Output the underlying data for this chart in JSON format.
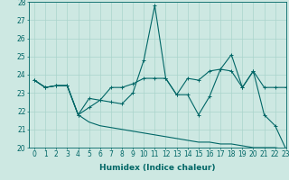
{
  "title": "",
  "xlabel": "Humidex (Indice chaleur)",
  "ylabel": "",
  "xlim": [
    -0.5,
    23
  ],
  "ylim": [
    20,
    28
  ],
  "yticks": [
    20,
    21,
    22,
    23,
    24,
    25,
    26,
    27,
    28
  ],
  "xticks": [
    0,
    1,
    2,
    3,
    4,
    5,
    6,
    7,
    8,
    9,
    10,
    11,
    12,
    13,
    14,
    15,
    16,
    17,
    18,
    19,
    20,
    21,
    22,
    23
  ],
  "background_color": "#cde8e2",
  "grid_color": "#aad4cc",
  "line_color": "#006666",
  "line1": [
    23.7,
    23.3,
    23.4,
    23.4,
    21.8,
    22.7,
    22.6,
    22.5,
    22.4,
    23.0,
    24.8,
    27.8,
    23.8,
    22.9,
    22.9,
    21.8,
    22.8,
    24.3,
    25.1,
    23.3,
    24.2,
    21.8,
    21.2,
    19.9
  ],
  "line2": [
    23.7,
    23.3,
    23.4,
    23.4,
    21.8,
    22.2,
    22.6,
    23.3,
    23.3,
    23.5,
    23.8,
    23.8,
    23.8,
    22.9,
    23.8,
    23.7,
    24.2,
    24.3,
    24.2,
    23.3,
    24.2,
    23.3,
    23.3,
    23.3
  ],
  "line3": [
    23.7,
    23.3,
    23.4,
    23.4,
    21.8,
    21.4,
    21.2,
    21.1,
    21.0,
    20.9,
    20.8,
    20.7,
    20.6,
    20.5,
    20.4,
    20.3,
    20.3,
    20.2,
    20.2,
    20.1,
    20.0,
    20.0,
    20.0,
    19.9
  ],
  "tick_fontsize": 5.5,
  "xlabel_fontsize": 6.5
}
